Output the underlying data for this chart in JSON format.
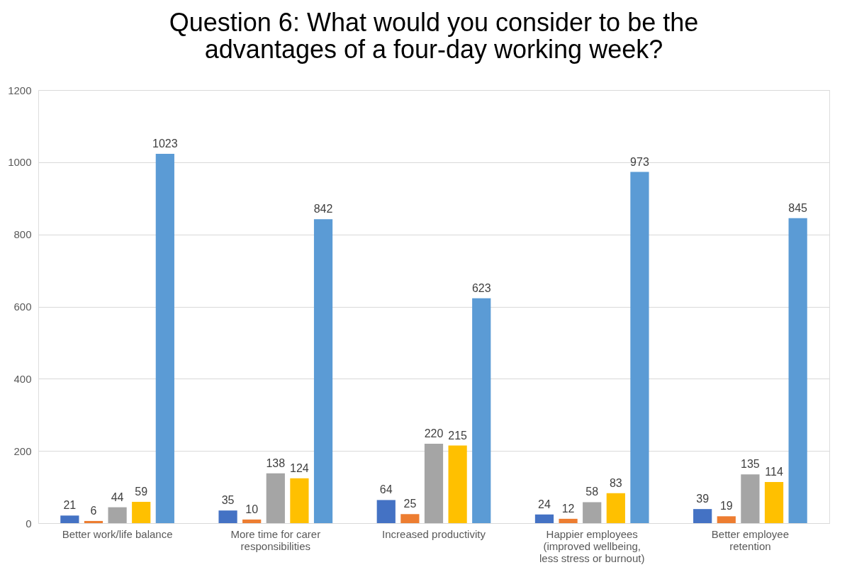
{
  "chart_data": {
    "type": "bar",
    "title": "Question 6: What would you consider to be the advantages of a four-day working week?",
    "categories": [
      "Better work/life balance",
      "More time for carer responsibilities",
      "Increased productivity",
      "Happier employees (improved wellbeing, less stress or burnout)",
      "Better employee retention"
    ],
    "series": [
      {
        "color": "#4472c4",
        "values": [
          21,
          35,
          64,
          24,
          39
        ]
      },
      {
        "color": "#ed7d31",
        "values": [
          6,
          10,
          25,
          12,
          19
        ]
      },
      {
        "color": "#a5a5a5",
        "values": [
          44,
          138,
          220,
          58,
          135
        ]
      },
      {
        "color": "#ffc000",
        "values": [
          59,
          124,
          215,
          83,
          114
        ]
      },
      {
        "color": "#5b9bd5",
        "values": [
          1023,
          842,
          623,
          973,
          845
        ]
      }
    ],
    "ylim": [
      0,
      1200
    ],
    "yticks": [
      0,
      200,
      400,
      600,
      800,
      1000,
      1200
    ],
    "grid": "y",
    "legend": false,
    "data_labels": true
  }
}
